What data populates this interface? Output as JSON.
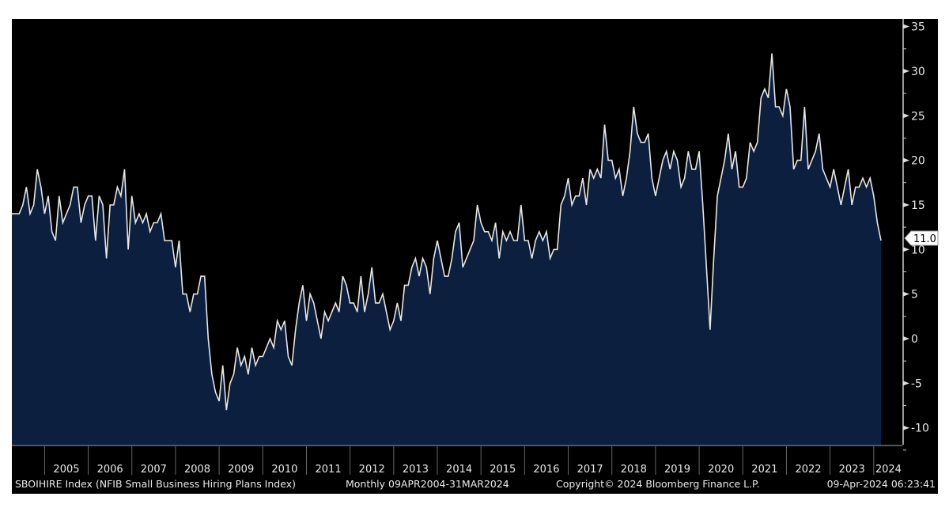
{
  "chart_data": {
    "type": "area",
    "title": "SBOIHIRE Index (NFIB Small Business Hiring Plans Index)",
    "frequency": "Monthly",
    "x_start": "2004-04",
    "x_end": "2024-03",
    "ylim": [
      -12,
      36
    ],
    "yticks": [
      35,
      30,
      25,
      20,
      15,
      10,
      5,
      0,
      -5,
      -10
    ],
    "xticks": [
      "2005",
      "2006",
      "2007",
      "2008",
      "2009",
      "2010",
      "2011",
      "2012",
      "2013",
      "2014",
      "2015",
      "2016",
      "2017",
      "2018",
      "2019",
      "2020",
      "2021",
      "2022",
      "2023",
      "2024"
    ],
    "last_value_label": "11.0",
    "colors": {
      "fill": "#0c1f3f",
      "line": "#e6e6e6",
      "background": "#000000"
    },
    "values": [
      14,
      14,
      14,
      15,
      17,
      14,
      15,
      19,
      17,
      14,
      16,
      12,
      11,
      16,
      13,
      14,
      15,
      17,
      17,
      13,
      15,
      16,
      16,
      11,
      16,
      15,
      9,
      15,
      15,
      17,
      16,
      19,
      10,
      16,
      13,
      14,
      13,
      14,
      12,
      13,
      13,
      14,
      11,
      11,
      11,
      8,
      11,
      5,
      5,
      3,
      5,
      5,
      7,
      7,
      0,
      -4,
      -6,
      -7,
      -3,
      -8,
      -5,
      -4,
      -1,
      -3,
      -2,
      -4,
      -1,
      -3,
      -2,
      -2,
      -1,
      0,
      -1,
      2,
      1,
      2,
      -2,
      -3,
      1,
      4,
      6,
      2,
      5,
      4,
      2,
      0,
      3,
      2,
      3,
      4,
      3,
      7,
      6,
      4,
      4,
      3,
      7,
      3,
      5,
      8,
      4,
      4,
      5,
      3,
      1,
      2,
      4,
      2,
      6,
      6,
      8,
      9,
      7,
      9,
      8,
      5,
      9,
      11,
      9,
      7,
      7,
      9,
      12,
      13,
      8,
      9,
      10,
      11,
      15,
      13,
      12,
      12,
      11,
      13,
      9,
      12,
      11,
      12,
      11,
      11,
      15,
      11,
      11,
      9,
      11,
      12,
      11,
      12,
      9,
      10,
      10,
      15,
      16,
      18,
      15,
      16,
      16,
      18,
      15,
      19,
      18,
      19,
      18,
      24,
      20,
      20,
      18,
      19,
      16,
      18,
      21,
      26,
      23,
      22,
      22,
      23,
      18,
      16,
      18,
      20,
      21,
      19,
      21,
      20,
      17,
      18,
      21,
      19,
      19,
      21,
      15,
      8,
      1,
      9,
      16,
      18,
      20,
      23,
      19,
      21,
      17,
      17,
      18,
      22,
      21,
      22,
      27,
      28,
      27,
      32,
      26,
      26,
      25,
      28,
      26,
      19,
      20,
      20,
      26,
      19,
      20,
      21,
      23,
      19,
      18,
      17,
      19,
      17,
      15,
      17,
      19,
      15,
      17,
      17,
      18,
      17,
      18,
      16,
      13,
      11
    ]
  },
  "footer": {
    "description": "SBOIHIRE Index (NFIB Small Business Hiring Plans Index)",
    "range": "Monthly 09APR2004-31MAR2024",
    "copyright": "Copyright© 2024 Bloomberg Finance L.P.",
    "timestamp": "09-Apr-2024 06:23:41"
  }
}
